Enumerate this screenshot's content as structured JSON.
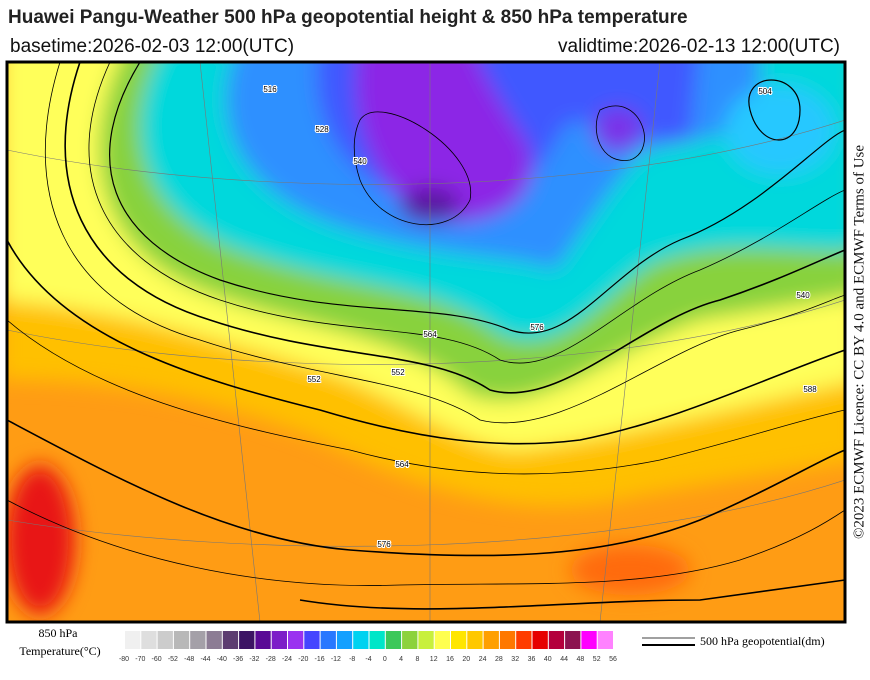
{
  "header": {
    "title": "Huawei Pangu-Weather 500 hPa geopotential height & 850 hPa temperature",
    "basetime": "basetime:2026-02-03 12:00(UTC)",
    "validtime": "validtime:2026-02-13 12:00(UTC)"
  },
  "side_note": "©2023 ECMWF Licence: CC BY 4.0 and ECMWF Terms of Use",
  "map": {
    "contour_labels": [
      "504",
      "516",
      "528",
      "540",
      "552",
      "564",
      "576",
      "552",
      "564",
      "576",
      "588",
      "540"
    ]
  },
  "legend": {
    "label_lines": [
      "850 hPa",
      "Temperature(°C)"
    ],
    "ticks": [
      -80,
      -70,
      -60,
      -52,
      -48,
      -44,
      -40,
      -36,
      -32,
      -28,
      -24,
      -20,
      -16,
      -12,
      -8,
      -4,
      0,
      4,
      8,
      12,
      16,
      20,
      24,
      28,
      32,
      36,
      40,
      44,
      48,
      52,
      56
    ],
    "colors": [
      "#f0f0f0",
      "#dedede",
      "#cccccc",
      "#b8b8b8",
      "#a4a0a8",
      "#8c7c94",
      "#5c3c70",
      "#3c1464",
      "#5a0a96",
      "#7d1ec8",
      "#9a32f0",
      "#4646ff",
      "#2878ff",
      "#14a0ff",
      "#00d2f0",
      "#00e6c8",
      "#3cc85a",
      "#8cd23c",
      "#c8f03c",
      "#ffff50",
      "#ffe600",
      "#ffc800",
      "#ffa000",
      "#ff7800",
      "#ff3c00",
      "#e60000",
      "#b4003c",
      "#8c1450",
      "#ff00ff",
      "#ff82ff"
    ]
  },
  "contour_legend": {
    "label": "500 hPa geopotential(dm)"
  }
}
